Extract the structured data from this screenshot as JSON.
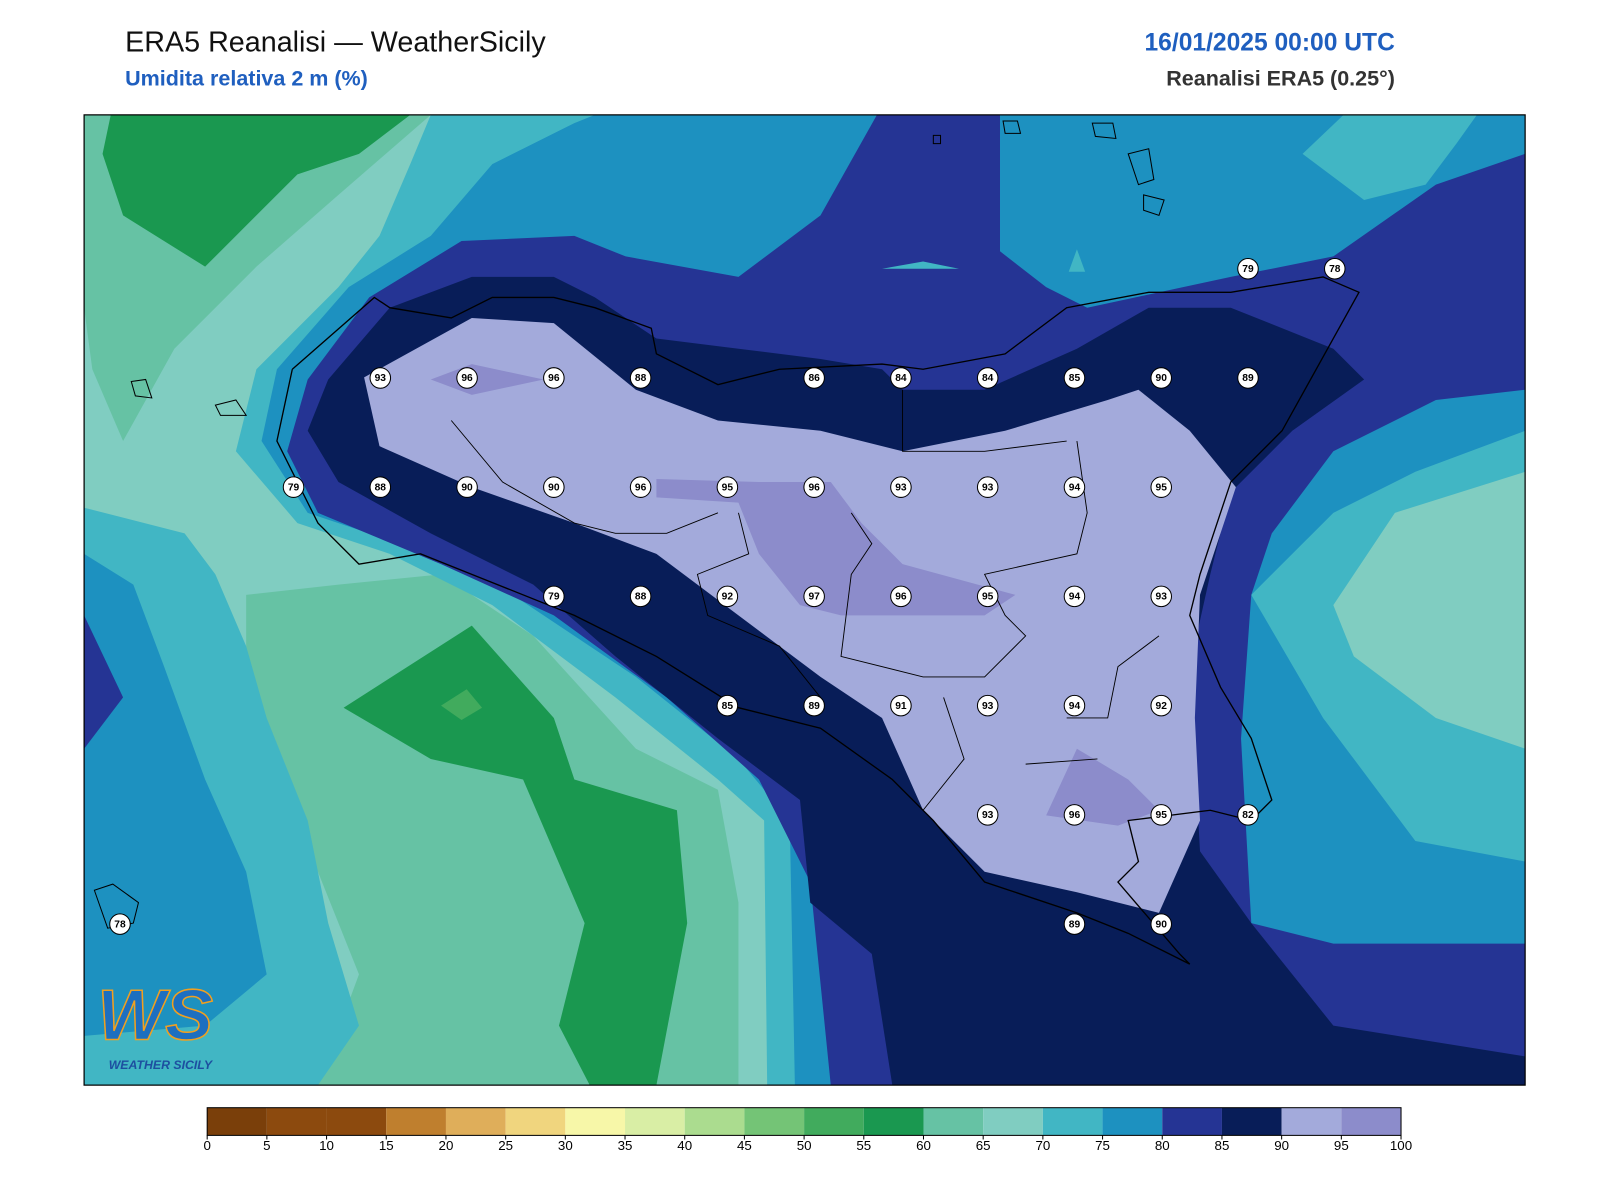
{
  "header": {
    "title": "ERA5 Reanalisi — WeatherSicily",
    "subtitle": "Umidita relativa 2 m (%)",
    "datetime": "16/01/2025 00:00 UTC",
    "source": "Reanalisi ERA5 (0.25°)"
  },
  "map": {
    "stations": [
      [
        null,
        null,
        null,
        null,
        null,
        null,
        null,
        null,
        null,
        null,
        null,
        null,
        null,
        79,
        78
      ],
      [
        null,
        null,
        null,
        93,
        96,
        96,
        88,
        null,
        86,
        84,
        84,
        85,
        90,
        89,
        null
      ],
      [
        null,
        null,
        79,
        88,
        90,
        90,
        96,
        95,
        96,
        93,
        93,
        94,
        95,
        null,
        null
      ],
      [
        null,
        null,
        null,
        null,
        null,
        79,
        88,
        92,
        97,
        96,
        95,
        94,
        93,
        null,
        null
      ],
      [
        null,
        null,
        null,
        null,
        null,
        null,
        null,
        85,
        89,
        91,
        93,
        94,
        92,
        null,
        null
      ],
      [
        null,
        null,
        null,
        null,
        null,
        null,
        null,
        null,
        null,
        null,
        93,
        96,
        95,
        82,
        null
      ],
      [
        78,
        null,
        null,
        null,
        null,
        null,
        null,
        null,
        null,
        null,
        null,
        89,
        90,
        null,
        null
      ]
    ]
  },
  "colorbar": {
    "ticks": [
      0,
      5,
      10,
      15,
      20,
      25,
      30,
      35,
      40,
      45,
      50,
      55,
      60,
      65,
      70,
      75,
      80,
      85,
      90,
      95,
      100
    ],
    "colors": [
      "#7a3f0a",
      "#8c4a0e",
      "#8c4a0e",
      "#bf7f2e",
      "#dfae5a",
      "#f0d57e",
      "#f7f7a8",
      "#d9eea5",
      "#abdc8f",
      "#74c476",
      "#41ab5d",
      "#1a9850",
      "#66c2a4",
      "#80cdc1",
      "#41b6c4",
      "#1d91c0",
      "#253494",
      "#081d58",
      "#a3aadb",
      "#8c8ccb"
    ]
  },
  "logo": {
    "mark": "WS",
    "text": "WEATHER SICILY"
  }
}
